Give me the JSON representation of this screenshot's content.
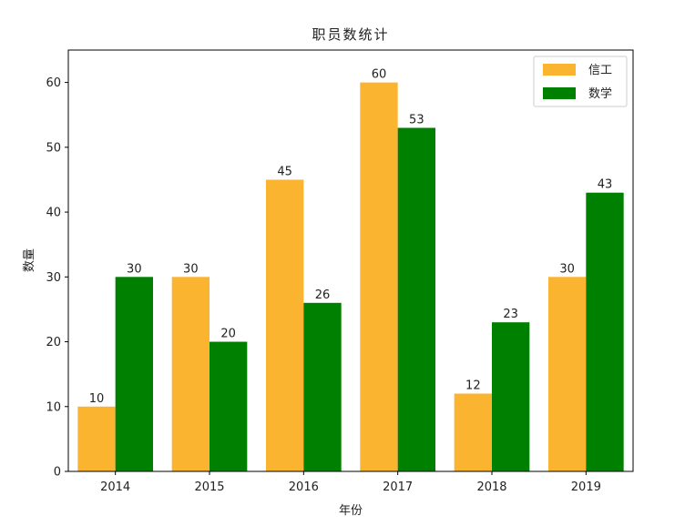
{
  "chart_data": {
    "type": "bar",
    "title": "职员数统计",
    "xlabel": "年份",
    "ylabel": "数量",
    "categories": [
      "2014",
      "2015",
      "2016",
      "2017",
      "2018",
      "2019"
    ],
    "series": [
      {
        "name": "信工",
        "color": "#FBB430",
        "values": [
          10,
          30,
          45,
          60,
          12,
          30
        ]
      },
      {
        "name": "数学",
        "color": "#008000",
        "values": [
          30,
          20,
          26,
          53,
          23,
          43
        ]
      }
    ],
    "ylim": [
      0,
      65
    ],
    "yticks": [
      0,
      10,
      20,
      30,
      40,
      50,
      60
    ],
    "legend_position": "top-right",
    "grid": false
  }
}
